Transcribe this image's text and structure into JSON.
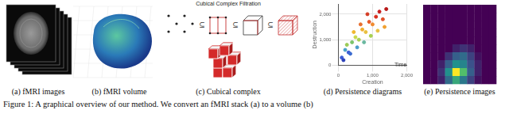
{
  "figure": {
    "panels": [
      {
        "label": "(a) fMRI images"
      },
      {
        "label": "(b) fMRI volume"
      },
      {
        "label": "(c) Cubical complex"
      },
      {
        "label": "(d) Persistence diagrams"
      },
      {
        "label": "(e) Persistence images"
      }
    ],
    "filtration_title": "Cubical Complex Filtration",
    "subset_symbol": "⊆",
    "caption": "Figure 1: A graphical overview of our method. We convert an fMRI stack (a) to a volume (b)"
  },
  "chart_data": {
    "type": "scatter",
    "x_label": "Creation",
    "y_label": "Destruction",
    "z_label": "Time",
    "x": [
      100,
      200,
      300,
      400,
      500,
      600,
      700,
      800,
      900,
      1000,
      1100,
      1200,
      1300,
      1400,
      150,
      350,
      550,
      750,
      950,
      1150,
      1350,
      250,
      450,
      650,
      850
    ],
    "values": [
      300,
      600,
      500,
      900,
      1100,
      1000,
      1400,
      1300,
      1700,
      1600,
      1900,
      2100,
      1800,
      2200,
      200,
      450,
      700,
      900,
      1150,
      1350,
      1500,
      800,
      1300,
      1600,
      2000
    ],
    "colors": [
      "#3b5bd6",
      "#48a0c8",
      "#3b5bd6",
      "#7cc46a",
      "#c8d84a",
      "#a8d050",
      "#f0b030",
      "#e8c040",
      "#e85a2a",
      "#f08a30",
      "#d83020",
      "#c81e1e",
      "#e05028",
      "#b81818",
      "#2a3fb8",
      "#3b6bd0",
      "#4a9cc8",
      "#6ab8a0",
      "#a8d050",
      "#e8c040",
      "#f0a030",
      "#9ccc58",
      "#f0b830",
      "#e87030",
      "#d43a22"
    ],
    "xlim": [
      0,
      2000
    ],
    "ylim": [
      0,
      2400
    ],
    "xticks": [
      0,
      {
        "value": 1000,
        "label": "1,000"
      },
      {
        "value": 2000,
        "label": "2,000"
      }
    ],
    "yticks": [
      0,
      {
        "value": 1000,
        "label": "1,000"
      },
      {
        "value": 2000,
        "label": "2,000"
      }
    ],
    "grid": true
  },
  "persistence_image": {
    "cells": [
      [
        0,
        0,
        0,
        0,
        0,
        0,
        0,
        0,
        0,
        0
      ],
      [
        0,
        0,
        0,
        0,
        0,
        0,
        0,
        0,
        0,
        0
      ],
      [
        0,
        0,
        0,
        0,
        0,
        0,
        0,
        0,
        0,
        0
      ],
      [
        0,
        0,
        0,
        0,
        0,
        0,
        0,
        0,
        0,
        0
      ],
      [
        0,
        0,
        0,
        0,
        0,
        0,
        0,
        0,
        0,
        0
      ],
      [
        0,
        0,
        0,
        0,
        0.1,
        0.15,
        0.1,
        0,
        0,
        0
      ],
      [
        0,
        0,
        0,
        0.15,
        0.3,
        0.35,
        0.2,
        0.05,
        0,
        0
      ],
      [
        0,
        0,
        0.1,
        0.3,
        0.5,
        0.45,
        0.25,
        0.1,
        0,
        0
      ],
      [
        0,
        0,
        0.15,
        0.5,
        1,
        0.7,
        0.3,
        0.1,
        0,
        0
      ],
      [
        0,
        0,
        0.1,
        0.35,
        0.6,
        0.4,
        0.2,
        0.05,
        0,
        0
      ]
    ]
  }
}
